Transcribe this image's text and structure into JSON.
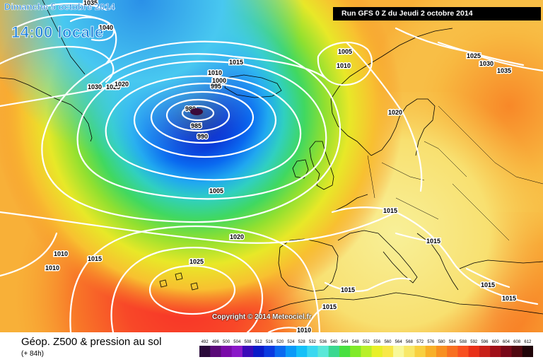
{
  "header": {
    "date_line": "Dimanche 5 octobre 2014",
    "time_line": "14:00 locale",
    "run_banner": "Run GFS 0 Z du Jeudi 2 octobre 2014"
  },
  "footer": {
    "copyright": "Copyright © 2014 Meteociel.fr",
    "product_title": "Géop. Z500 & pression au sol",
    "lead_time": "(+ 84h)"
  },
  "low_center": {
    "label": "980"
  },
  "isobar_labels": [
    "1035",
    "1040",
    "1030",
    "1025",
    "1020",
    "1015",
    "1010",
    "1005",
    "1010",
    "1000",
    "995",
    "980",
    "985",
    "990",
    "1005",
    "1020",
    "1010",
    "1010",
    "1015",
    "1025",
    "1020",
    "1015",
    "1015",
    "1015",
    "1015",
    "1015",
    "1010",
    "1025",
    "1030",
    "1035",
    "1015"
  ],
  "colors": {
    "banner_bg": "#000000",
    "banner_text": "#ffffff",
    "title_text": "#1c7fd8",
    "isobar": "#ffffff",
    "low_core": "#3a0a3a"
  },
  "scale": {
    "labels": [
      "492",
      "496",
      "500",
      "504",
      "508",
      "512",
      "516",
      "520",
      "524",
      "528",
      "532",
      "536",
      "540",
      "544",
      "548",
      "552",
      "556",
      "560",
      "564",
      "568",
      "572",
      "576",
      "580",
      "584",
      "588",
      "592",
      "596",
      "600",
      "604",
      "608",
      "612"
    ],
    "colors": [
      "#2a0a3a",
      "#5a0a78",
      "#7a0aa8",
      "#8a18c8",
      "#3a0ab8",
      "#0a1ac8",
      "#0a3ae0",
      "#0a6af0",
      "#0a9af8",
      "#14c0f8",
      "#3ad8f0",
      "#5ae8d8",
      "#3ad890",
      "#48e040",
      "#80ea28",
      "#b8f028",
      "#e8f028",
      "#f8e848",
      "#f8f898",
      "#f8e868",
      "#f8d040",
      "#f8b028",
      "#f89020",
      "#f87020",
      "#f85020",
      "#e83018",
      "#c82018",
      "#a01018",
      "#780818",
      "#500810",
      "#200408"
    ]
  }
}
